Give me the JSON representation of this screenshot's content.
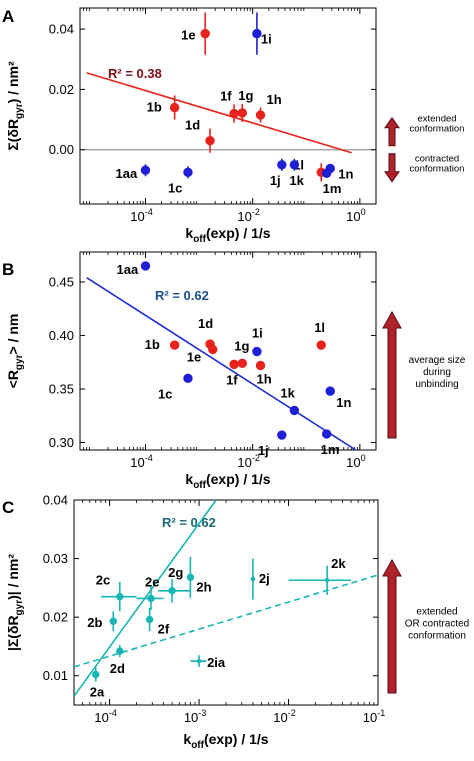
{
  "colors": {
    "red": "#e8221c",
    "blue": "#1f1fd6",
    "cyan": "#18b5b5",
    "blue_line": "#1e2fd0",
    "arrow_fill": "#b0222a",
    "arrow_stroke": "#5a0a10",
    "zero_line": "#999999",
    "axis": "#000000",
    "r2_red": "#7a0d14",
    "r2_blue": "#1d4f8c",
    "r2_cyan": "#1a6b75"
  },
  "chart_data": [
    {
      "panel": "A",
      "type": "scatter",
      "x_scale": "log",
      "xlabel": "k",
      "xlabel_sub": "off",
      "xlabel_rest": "(exp) / 1/s",
      "ylabel": "Σ(δR",
      "ylabel_sub": "gyr",
      "ylabel_rest": ") / nm²",
      "xlim": [
        6e-06,
        2
      ],
      "ylim": [
        -0.018,
        0.047
      ],
      "xticks": [
        {
          "value": 0.0001,
          "label": "10",
          "exp": "-4"
        },
        {
          "value": 0.01,
          "label": "10",
          "exp": "-2"
        },
        {
          "value": 1,
          "label": "10",
          "exp": "0"
        }
      ],
      "yticks": [
        {
          "value": 0.0,
          "label": "0.00"
        },
        {
          "value": 0.02,
          "label": "0.02"
        },
        {
          "value": 0.04,
          "label": "0.04"
        }
      ],
      "zero_line": true,
      "fit": {
        "color": "red",
        "x1": 8e-06,
        "y1": 0.0255,
        "x2": 0.7,
        "y2": -0.001
      },
      "r2": "R² = 0.38",
      "r2_color": "r2_red",
      "series": [
        {
          "color": "red",
          "points": [
            {
              "x": 0.0013,
              "y": 0.0385,
              "yerr": 0.007,
              "label": "1e"
            },
            {
              "x": 0.00035,
              "y": 0.014,
              "yerr": 0.004,
              "label": "1b"
            },
            {
              "x": 0.0045,
              "y": 0.012,
              "yerr": 0.003,
              "label": "1f"
            },
            {
              "x": 0.0064,
              "y": 0.0122,
              "yerr": 0.003,
              "label": "1g"
            },
            {
              "x": 0.014,
              "y": 0.0115,
              "yerr": 0.0025,
              "label": "1h"
            },
            {
              "x": 0.0016,
              "y": 0.003,
              "yerr": 0.004,
              "label": "1d"
            },
            {
              "x": 0.19,
              "y": -0.0075,
              "yerr": 0.003,
              "label": "1l"
            }
          ]
        },
        {
          "color": "blue",
          "points": [
            {
              "x": 0.012,
              "y": 0.0385,
              "yerr": 0.007,
              "label": "1i"
            },
            {
              "x": 0.0001,
              "y": -0.0068,
              "yerr": 0.002,
              "label": "1aa"
            },
            {
              "x": 0.00062,
              "y": -0.0075,
              "yerr": 0.002,
              "label": "1c"
            },
            {
              "x": 0.035,
              "y": -0.005,
              "yerr": 0.002,
              "label": "1j"
            },
            {
              "x": 0.06,
              "y": -0.005,
              "yerr": 0.002,
              "label": "1k"
            },
            {
              "x": 0.28,
              "y": -0.0062,
              "yerr": 0.0015,
              "label": "1n"
            },
            {
              "x": 0.24,
              "y": -0.0078,
              "yerr": 0.0015,
              "label": "1m"
            }
          ]
        }
      ],
      "side_arrow": {
        "type": "double",
        "top_text": [
          "extended",
          "conformation"
        ],
        "bottom_text": [
          "contracted",
          "conformation"
        ]
      }
    },
    {
      "panel": "B",
      "type": "scatter",
      "x_scale": "log",
      "xlabel": "k",
      "xlabel_sub": "off",
      "xlabel_rest": "(exp) / 1/s",
      "ylabel": "<R",
      "ylabel_sub": "gyr",
      "ylabel_rest": "> / nm",
      "xlim": [
        6e-06,
        2
      ],
      "ylim": [
        0.293,
        0.478
      ],
      "xticks": [
        {
          "value": 0.0001,
          "label": "10",
          "exp": "-4"
        },
        {
          "value": 0.01,
          "label": "10",
          "exp": "-2"
        },
        {
          "value": 1,
          "label": "10",
          "exp": "0"
        }
      ],
      "yticks": [
        {
          "value": 0.3,
          "label": "0.30"
        },
        {
          "value": 0.35,
          "label": "0.35"
        },
        {
          "value": 0.4,
          "label": "0.40"
        },
        {
          "value": 0.45,
          "label": "0.45"
        }
      ],
      "fit": {
        "color": "blue_line",
        "x1": 8e-06,
        "y1": 0.454,
        "x2": 0.9,
        "y2": 0.292
      },
      "r2": "R² = 0.62",
      "r2_color": "r2_blue",
      "series": [
        {
          "color": "blue",
          "points": [
            {
              "x": 0.0001,
              "y": 0.465,
              "label": "1aa"
            },
            {
              "x": 0.00062,
              "y": 0.36,
              "label": "1c"
            },
            {
              "x": 0.012,
              "y": 0.385,
              "label": "1i"
            },
            {
              "x": 0.035,
              "y": 0.307,
              "label": "1j"
            },
            {
              "x": 0.06,
              "y": 0.33,
              "label": "1k"
            },
            {
              "x": 0.28,
              "y": 0.348,
              "label": "1n"
            },
            {
              "x": 0.24,
              "y": 0.308,
              "label": "1m"
            }
          ]
        },
        {
          "color": "red",
          "points": [
            {
              "x": 0.00035,
              "y": 0.391,
              "label": "1b"
            },
            {
              "x": 0.0016,
              "y": 0.392,
              "label": "1d"
            },
            {
              "x": 0.0018,
              "y": 0.387,
              "label": "1e"
            },
            {
              "x": 0.0045,
              "y": 0.373,
              "label": "1f"
            },
            {
              "x": 0.0064,
              "y": 0.374,
              "label": "1g"
            },
            {
              "x": 0.014,
              "y": 0.372,
              "label": "1h"
            },
            {
              "x": 0.19,
              "y": 0.391,
              "label": "1l"
            }
          ]
        }
      ],
      "side_arrow": {
        "type": "up",
        "text": [
          "average size",
          "during",
          "unbinding"
        ]
      }
    },
    {
      "panel": "C",
      "type": "scatter",
      "x_scale": "log",
      "xlabel": "k",
      "xlabel_sub": "off",
      "xlabel_rest": "(exp) / 1/s",
      "ylabel": "|Σ(δR",
      "ylabel_sub": "gyr",
      "ylabel_rest": ")| / nm²",
      "xlim": [
        4e-05,
        0.1
      ],
      "ylim": [
        0.005,
        0.04
      ],
      "xticks": [
        {
          "value": 0.0001,
          "label": "10",
          "exp": "-4"
        },
        {
          "value": 0.001,
          "label": "10",
          "exp": "-3"
        },
        {
          "value": 0.01,
          "label": "10",
          "exp": "-2"
        },
        {
          "value": 0.1,
          "label": "10",
          "exp": "-1"
        }
      ],
      "yticks": [
        {
          "value": 0.01,
          "label": "0.01"
        },
        {
          "value": 0.02,
          "label": "0.02"
        },
        {
          "value": 0.03,
          "label": "0.03"
        },
        {
          "value": 0.04,
          "label": "0.04"
        }
      ],
      "fit": {
        "color": "cyan",
        "x1": 4e-05,
        "y1": 0.0065,
        "x2": 0.00155,
        "y2": 0.04
      },
      "fit2": {
        "color": "cyan",
        "dashed": true,
        "x1": 4e-05,
        "y1": 0.0115,
        "x2": 0.1,
        "y2": 0.0272
      },
      "r2": "R² = 0.62",
      "r2_color": "r2_cyan",
      "series": [
        {
          "color": "cyan",
          "points": [
            {
              "x": 7e-05,
              "y": 0.0102,
              "yerr": 0.0012,
              "label": "2a"
            },
            {
              "x": 0.00013,
              "y": 0.0142,
              "yerr": 0.001,
              "label": "2d"
            },
            {
              "x": 0.00011,
              "y": 0.0193,
              "yerr": 0.0017,
              "label": "2b"
            },
            {
              "x": 0.00028,
              "y": 0.0196,
              "yerr": 0.002,
              "label": "2f"
            },
            {
              "x": 0.00013,
              "y": 0.0235,
              "yerr": 0.0025,
              "xerr_lo": 8e-05,
              "xerr_hi": 0.0002,
              "label": "2c"
            },
            {
              "x": 0.00029,
              "y": 0.0232,
              "yerr": 0.002,
              "xerr_lo": 0.0002,
              "xerr_hi": 0.0004,
              "label": "2e"
            },
            {
              "x": 0.0005,
              "y": 0.0245,
              "yerr": 0.002,
              "xerr_lo": 0.00035,
              "xerr_hi": 0.0008,
              "label": "2g"
            },
            {
              "x": 0.0008,
              "y": 0.0268,
              "yerr": 0.0035,
              "label": "2h"
            },
            {
              "x": 0.004,
              "y": 0.0265,
              "yerr": 0.0035,
              "label": "2j",
              "small": true
            },
            {
              "x": 0.027,
              "y": 0.0263,
              "yerr": 0.0025,
              "xerr_lo": 0.01,
              "xerr_hi": 0.05,
              "label": "2k",
              "small": true
            },
            {
              "x": 0.001,
              "y": 0.0125,
              "yerr": 0.001,
              "xerr_lo": 0.0008,
              "xerr_hi": 0.0012,
              "label": "2ia",
              "small": true
            }
          ]
        }
      ],
      "side_arrow": {
        "type": "up",
        "text": [
          "extended",
          "OR contracted",
          "conformation"
        ]
      }
    }
  ]
}
